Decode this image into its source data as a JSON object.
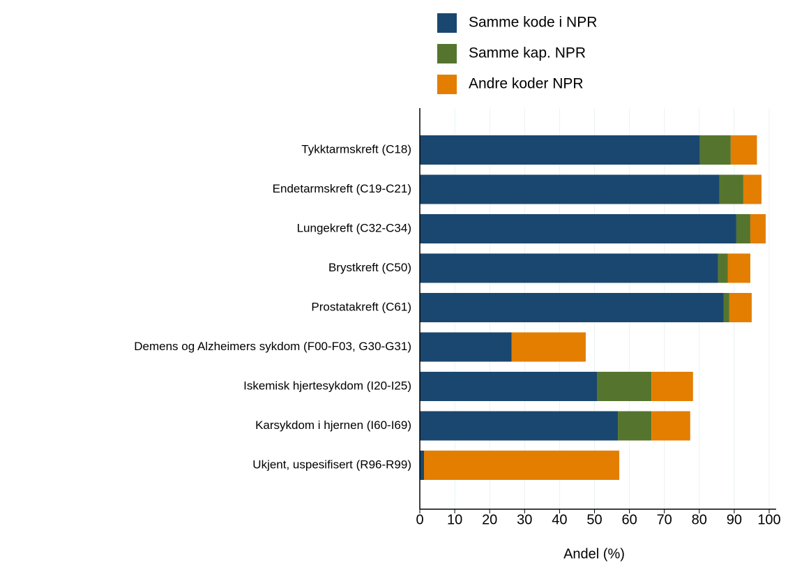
{
  "chart_data": {
    "type": "stacked_barh",
    "categories": [
      "Tykktarmskreft (C18)",
      "Endetarmskreft (C19-C21)",
      "Lungekreft (C32-C34)",
      "Brystkreft (C50)",
      "Prostatakreft (C61)",
      "Demens og Alzheimers sykdom (F00-F03, G30-G31)",
      "Iskemisk hjertesykdom (I20-I25)",
      "Karsykdom i hjernen (I60-I69)",
      "Ukjent, uspesifisert (R96-R99)"
    ],
    "series": [
      {
        "name": "Samme kode i NPR",
        "color": "#1a476f",
        "values": [
          80.2,
          85.8,
          90.6,
          85.4,
          87.0,
          26.3,
          50.7,
          56.7,
          1.2
        ]
      },
      {
        "name": "Samme kap. NPR",
        "color": "#55752f",
        "values": [
          8.8,
          6.8,
          4.0,
          2.8,
          1.6,
          0,
          15.6,
          9.6,
          0
        ]
      },
      {
        "name": "Andre koder NPR",
        "color": "#e37e00",
        "values": [
          7.5,
          5.2,
          4.4,
          6.4,
          6.4,
          21.2,
          11.9,
          11.1,
          55.9
        ]
      }
    ],
    "xlabel": "Andel (%)",
    "xlim": [
      0,
      100
    ],
    "xticks": [
      0,
      10,
      20,
      30,
      40,
      50,
      60,
      70,
      80,
      90,
      100
    ],
    "grid": true,
    "legend": "top"
  }
}
